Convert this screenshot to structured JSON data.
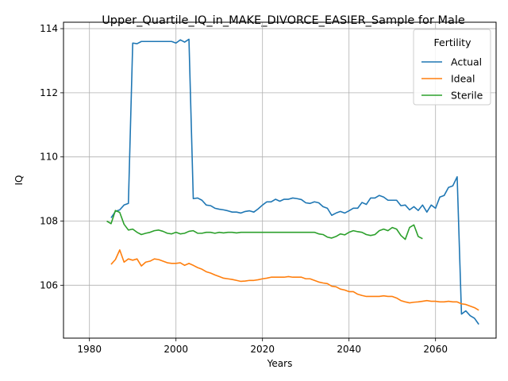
{
  "chart_data": {
    "type": "line",
    "title": "Upper_Quartile_IQ_in_MAKE_DIVORCE_EASIER_Sample for Male",
    "xlabel": "Years",
    "ylabel": "IQ",
    "xlim": [
      1974,
      2074
    ],
    "ylim": [
      104.35,
      114.2
    ],
    "x_ticks": [
      1980,
      2000,
      2020,
      2040,
      2060
    ],
    "y_ticks": [
      106,
      108,
      110,
      112,
      114
    ],
    "grid": true,
    "legend": {
      "title": "Fertility",
      "position": "top-right"
    },
    "series": [
      {
        "name": "Actual",
        "color": "#1f77b4",
        "points": [
          [
            1985,
            108.1
          ],
          [
            1986,
            108.3
          ],
          [
            1987,
            108.35
          ],
          [
            1988,
            108.5
          ],
          [
            1989,
            108.55
          ],
          [
            1990,
            113.55
          ],
          [
            1991,
            113.53
          ],
          [
            1992,
            113.6
          ],
          [
            1993,
            113.6
          ],
          [
            1994,
            113.6
          ],
          [
            1995,
            113.6
          ],
          [
            1996,
            113.6
          ],
          [
            1997,
            113.6
          ],
          [
            1998,
            113.6
          ],
          [
            1999,
            113.6
          ],
          [
            2000,
            113.55
          ],
          [
            2001,
            113.65
          ],
          [
            2002,
            113.58
          ],
          [
            2003,
            113.67
          ],
          [
            2004,
            108.7
          ],
          [
            2005,
            108.72
          ],
          [
            2006,
            108.65
          ],
          [
            2007,
            108.5
          ],
          [
            2008,
            108.48
          ],
          [
            2009,
            108.4
          ],
          [
            2010,
            108.37
          ],
          [
            2011,
            108.35
          ],
          [
            2012,
            108.32
          ],
          [
            2013,
            108.28
          ],
          [
            2014,
            108.28
          ],
          [
            2015,
            108.25
          ],
          [
            2016,
            108.3
          ],
          [
            2017,
            108.32
          ],
          [
            2018,
            108.28
          ],
          [
            2019,
            108.38
          ],
          [
            2020,
            108.5
          ],
          [
            2021,
            108.6
          ],
          [
            2022,
            108.6
          ],
          [
            2023,
            108.68
          ],
          [
            2024,
            108.62
          ],
          [
            2025,
            108.68
          ],
          [
            2026,
            108.68
          ],
          [
            2027,
            108.72
          ],
          [
            2028,
            108.7
          ],
          [
            2029,
            108.67
          ],
          [
            2030,
            108.57
          ],
          [
            2031,
            108.55
          ],
          [
            2032,
            108.6
          ],
          [
            2033,
            108.57
          ],
          [
            2034,
            108.45
          ],
          [
            2035,
            108.4
          ],
          [
            2036,
            108.18
          ],
          [
            2037,
            108.25
          ],
          [
            2038,
            108.3
          ],
          [
            2039,
            108.25
          ],
          [
            2040,
            108.32
          ],
          [
            2041,
            108.4
          ],
          [
            2042,
            108.4
          ],
          [
            2043,
            108.58
          ],
          [
            2044,
            108.52
          ],
          [
            2045,
            108.72
          ],
          [
            2046,
            108.72
          ],
          [
            2047,
            108.8
          ],
          [
            2048,
            108.75
          ],
          [
            2049,
            108.65
          ],
          [
            2050,
            108.65
          ],
          [
            2051,
            108.65
          ],
          [
            2052,
            108.48
          ],
          [
            2053,
            108.5
          ],
          [
            2054,
            108.35
          ],
          [
            2055,
            108.45
          ],
          [
            2056,
            108.33
          ],
          [
            2057,
            108.5
          ],
          [
            2058,
            108.28
          ],
          [
            2059,
            108.5
          ],
          [
            2060,
            108.4
          ],
          [
            2061,
            108.75
          ],
          [
            2062,
            108.8
          ],
          [
            2063,
            109.05
          ],
          [
            2064,
            109.1
          ],
          [
            2065,
            109.38
          ],
          [
            2066,
            105.1
          ],
          [
            2067,
            105.2
          ],
          [
            2068,
            105.05
          ],
          [
            2069,
            104.97
          ],
          [
            2070,
            104.78
          ]
        ]
      },
      {
        "name": "Ideal",
        "color": "#ff7f0e",
        "points": [
          [
            1985,
            106.65
          ],
          [
            1986,
            106.8
          ],
          [
            1987,
            107.1
          ],
          [
            1988,
            106.72
          ],
          [
            1989,
            106.82
          ],
          [
            1990,
            106.78
          ],
          [
            1991,
            106.82
          ],
          [
            1992,
            106.6
          ],
          [
            1993,
            106.72
          ],
          [
            1994,
            106.75
          ],
          [
            1995,
            106.82
          ],
          [
            1996,
            106.8
          ],
          [
            1997,
            106.75
          ],
          [
            1998,
            106.7
          ],
          [
            1999,
            106.68
          ],
          [
            2000,
            106.68
          ],
          [
            2001,
            106.7
          ],
          [
            2002,
            106.62
          ],
          [
            2003,
            106.68
          ],
          [
            2004,
            106.62
          ],
          [
            2005,
            106.55
          ],
          [
            2006,
            106.5
          ],
          [
            2007,
            106.42
          ],
          [
            2008,
            106.38
          ],
          [
            2009,
            106.32
          ],
          [
            2010,
            106.27
          ],
          [
            2011,
            106.22
          ],
          [
            2012,
            106.2
          ],
          [
            2013,
            106.18
          ],
          [
            2014,
            106.15
          ],
          [
            2015,
            106.12
          ],
          [
            2016,
            106.13
          ],
          [
            2017,
            106.15
          ],
          [
            2018,
            106.15
          ],
          [
            2019,
            106.17
          ],
          [
            2020,
            106.2
          ],
          [
            2021,
            106.22
          ],
          [
            2022,
            106.25
          ],
          [
            2023,
            106.25
          ],
          [
            2024,
            106.25
          ],
          [
            2025,
            106.25
          ],
          [
            2026,
            106.27
          ],
          [
            2027,
            106.25
          ],
          [
            2028,
            106.25
          ],
          [
            2029,
            106.25
          ],
          [
            2030,
            106.2
          ],
          [
            2031,
            106.2
          ],
          [
            2032,
            106.15
          ],
          [
            2033,
            106.1
          ],
          [
            2034,
            106.07
          ],
          [
            2035,
            106.05
          ],
          [
            2036,
            105.97
          ],
          [
            2037,
            105.95
          ],
          [
            2038,
            105.88
          ],
          [
            2039,
            105.85
          ],
          [
            2040,
            105.8
          ],
          [
            2041,
            105.8
          ],
          [
            2042,
            105.72
          ],
          [
            2043,
            105.68
          ],
          [
            2044,
            105.65
          ],
          [
            2045,
            105.65
          ],
          [
            2046,
            105.65
          ],
          [
            2047,
            105.65
          ],
          [
            2048,
            105.67
          ],
          [
            2049,
            105.65
          ],
          [
            2050,
            105.65
          ],
          [
            2051,
            105.6
          ],
          [
            2052,
            105.52
          ],
          [
            2053,
            105.48
          ],
          [
            2054,
            105.45
          ],
          [
            2055,
            105.47
          ],
          [
            2056,
            105.48
          ],
          [
            2057,
            105.5
          ],
          [
            2058,
            105.52
          ],
          [
            2059,
            105.5
          ],
          [
            2060,
            105.5
          ],
          [
            2061,
            105.48
          ],
          [
            2062,
            105.48
          ],
          [
            2063,
            105.5
          ],
          [
            2064,
            105.48
          ],
          [
            2065,
            105.48
          ],
          [
            2066,
            105.42
          ],
          [
            2067,
            105.4
          ],
          [
            2068,
            105.35
          ],
          [
            2069,
            105.3
          ],
          [
            2070,
            105.22
          ]
        ]
      },
      {
        "name": "Sterile",
        "color": "#2ca02c",
        "points": [
          [
            1984,
            108.0
          ],
          [
            1985,
            107.92
          ],
          [
            1986,
            108.33
          ],
          [
            1987,
            108.27
          ],
          [
            1988,
            107.9
          ],
          [
            1989,
            107.72
          ],
          [
            1990,
            107.75
          ],
          [
            1991,
            107.65
          ],
          [
            1992,
            107.58
          ],
          [
            1993,
            107.62
          ],
          [
            1994,
            107.65
          ],
          [
            1995,
            107.7
          ],
          [
            1996,
            107.72
          ],
          [
            1997,
            107.68
          ],
          [
            1998,
            107.62
          ],
          [
            1999,
            107.6
          ],
          [
            2000,
            107.65
          ],
          [
            2001,
            107.6
          ],
          [
            2002,
            107.62
          ],
          [
            2003,
            107.68
          ],
          [
            2004,
            107.7
          ],
          [
            2005,
            107.62
          ],
          [
            2006,
            107.62
          ],
          [
            2007,
            107.65
          ],
          [
            2008,
            107.65
          ],
          [
            2009,
            107.62
          ],
          [
            2010,
            107.65
          ],
          [
            2011,
            107.63
          ],
          [
            2012,
            107.65
          ],
          [
            2013,
            107.65
          ],
          [
            2014,
            107.63
          ],
          [
            2015,
            107.65
          ],
          [
            2016,
            107.65
          ],
          [
            2017,
            107.65
          ],
          [
            2018,
            107.65
          ],
          [
            2019,
            107.65
          ],
          [
            2020,
            107.65
          ],
          [
            2021,
            107.65
          ],
          [
            2022,
            107.65
          ],
          [
            2023,
            107.65
          ],
          [
            2024,
            107.65
          ],
          [
            2025,
            107.65
          ],
          [
            2026,
            107.65
          ],
          [
            2027,
            107.65
          ],
          [
            2028,
            107.65
          ],
          [
            2029,
            107.65
          ],
          [
            2030,
            107.65
          ],
          [
            2031,
            107.65
          ],
          [
            2032,
            107.65
          ],
          [
            2033,
            107.6
          ],
          [
            2034,
            107.58
          ],
          [
            2035,
            107.5
          ],
          [
            2036,
            107.47
          ],
          [
            2037,
            107.52
          ],
          [
            2038,
            107.6
          ],
          [
            2039,
            107.57
          ],
          [
            2040,
            107.65
          ],
          [
            2041,
            107.7
          ],
          [
            2042,
            107.67
          ],
          [
            2043,
            107.65
          ],
          [
            2044,
            107.58
          ],
          [
            2045,
            107.55
          ],
          [
            2046,
            107.58
          ],
          [
            2047,
            107.7
          ],
          [
            2048,
            107.75
          ],
          [
            2049,
            107.7
          ],
          [
            2050,
            107.8
          ],
          [
            2051,
            107.75
          ],
          [
            2052,
            107.55
          ],
          [
            2053,
            107.43
          ],
          [
            2054,
            107.8
          ],
          [
            2055,
            107.88
          ],
          [
            2056,
            107.52
          ],
          [
            2057,
            107.45
          ]
        ]
      }
    ]
  }
}
